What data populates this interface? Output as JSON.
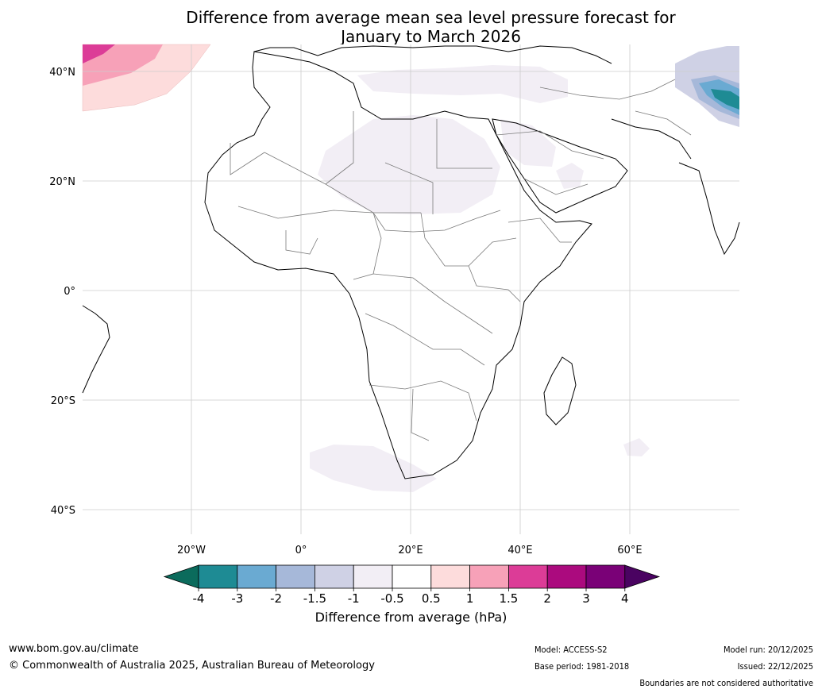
{
  "title_line1": "Difference from average mean sea level pressure forecast for",
  "title_line2": "January to March 2026",
  "lat_labels": [
    "40°N",
    "20°N",
    "0°",
    "20°S",
    "40°S"
  ],
  "lon_labels": [
    "20°W",
    "0°",
    "20°E",
    "40°E",
    "60°E"
  ],
  "colorbar": {
    "ticks": [
      "-4",
      "-3",
      "-2",
      "-1.5",
      "-1",
      "-0.5",
      "0.5",
      "1",
      "1.5",
      "2",
      "3",
      "4"
    ],
    "colors": [
      "#1e8b94",
      "#6aaad2",
      "#a6b8d9",
      "#cfd1e5",
      "#f2eef5",
      "#ffffff",
      "#fddcdc",
      "#f7a1b8",
      "#dc3c97",
      "#ab0a7e",
      "#7a0177"
    ],
    "low_extend_color": "#0b6b5c",
    "high_extend_color": "#4a0361",
    "label": "Difference from average (hPa)"
  },
  "footer": {
    "site": "www.bom.gov.au/climate",
    "copyright": "© Commonwealth of Australia 2025, Australian Bureau of Meteorology",
    "model": "Model: ACCESS-S2",
    "base_period": "Base period: 1981-2018",
    "model_run": "Model run: 20/12/2025",
    "issued": "Issued: 22/12/2025",
    "disclaimer": "Boundaries are not considered authoritative"
  }
}
